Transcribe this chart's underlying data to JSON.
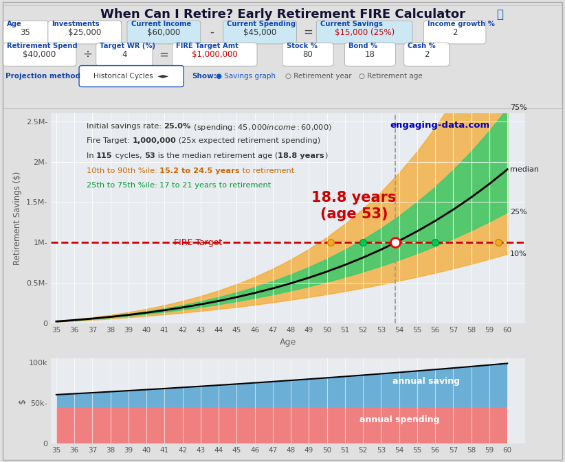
{
  "title": "When Can I Retire? Early Retirement FIRE Calculator",
  "bg_color": "#e0e0e0",
  "chart_bg": "#e8ecf0",
  "age_start": 35,
  "age_end": 60,
  "fire_target": 1000000,
  "median_years": 18.8,
  "initial_savings": 25000,
  "income": 60000,
  "spending": 45000,
  "p10_years": 15.2,
  "p90_years": 24.5,
  "p25_years": 17.0,
  "p75_years": 21.0,
  "color_orange": "#f5a623",
  "color_green": "#2ecc71",
  "color_fire_dashed": "#cc0000",
  "color_annotation": "#cc0000",
  "color_blue_savings": "#6baed6",
  "color_red_spending": "#f08080",
  "website": "engaging-data.com",
  "ylim_main": 2600000,
  "yticks_main": [
    0,
    500000,
    1000000,
    1500000,
    2000000,
    2500000
  ],
  "ytick_labels_main": [
    "0",
    "0.5M-",
    "1M-",
    "1.5M-",
    "2M-",
    "2.5M-"
  ],
  "ylim_bar": 105000,
  "yticks_bar": [
    0,
    50000,
    100000
  ],
  "ytick_labels_bar": [
    "0",
    "50k-",
    "100k"
  ]
}
